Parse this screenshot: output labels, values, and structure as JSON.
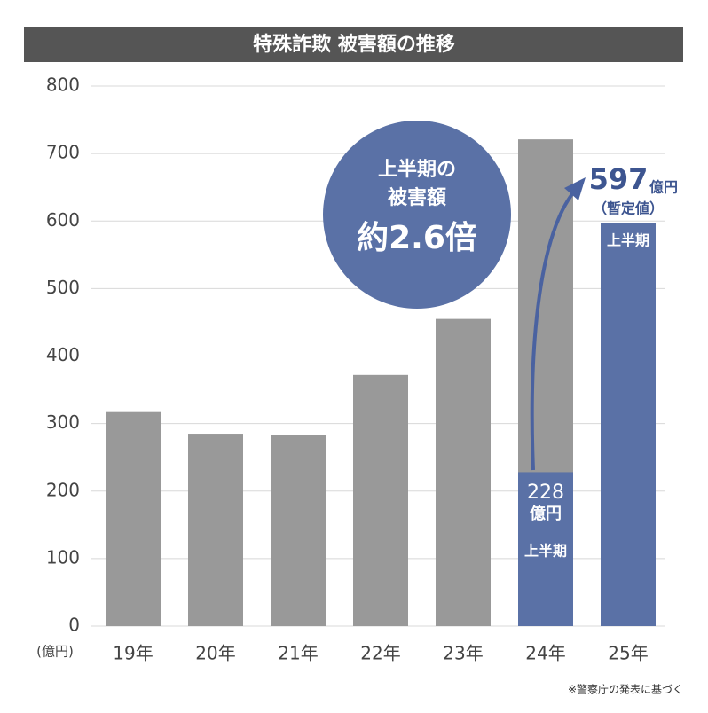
{
  "chart_data": {
    "type": "bar",
    "barmode": "overlay",
    "title": "特殊詐欺 被害額の推移",
    "ylabel": "(億円)",
    "categories": [
      "19年",
      "20年",
      "21年",
      "22年",
      "23年",
      "24年",
      "25年"
    ],
    "series": [
      {
        "color": "#999999",
        "values": [
          317,
          285,
          283,
          372,
          455,
          721,
          null
        ]
      },
      {
        "name": "上半期",
        "color": "#5a71a6",
        "values": [
          null,
          null,
          null,
          null,
          null,
          228,
          597
        ]
      }
    ],
    "value_unit": "億円",
    "ylim": [
      0,
      800
    ],
    "yticks": [
      0,
      100,
      200,
      300,
      400,
      500,
      600,
      700,
      800
    ],
    "grid": true,
    "annotations": [
      "上半期の",
      "被害額",
      "約2.6倍",
      "（暫定値）"
    ],
    "footnote": "※警察庁の発表に基づく"
  }
}
